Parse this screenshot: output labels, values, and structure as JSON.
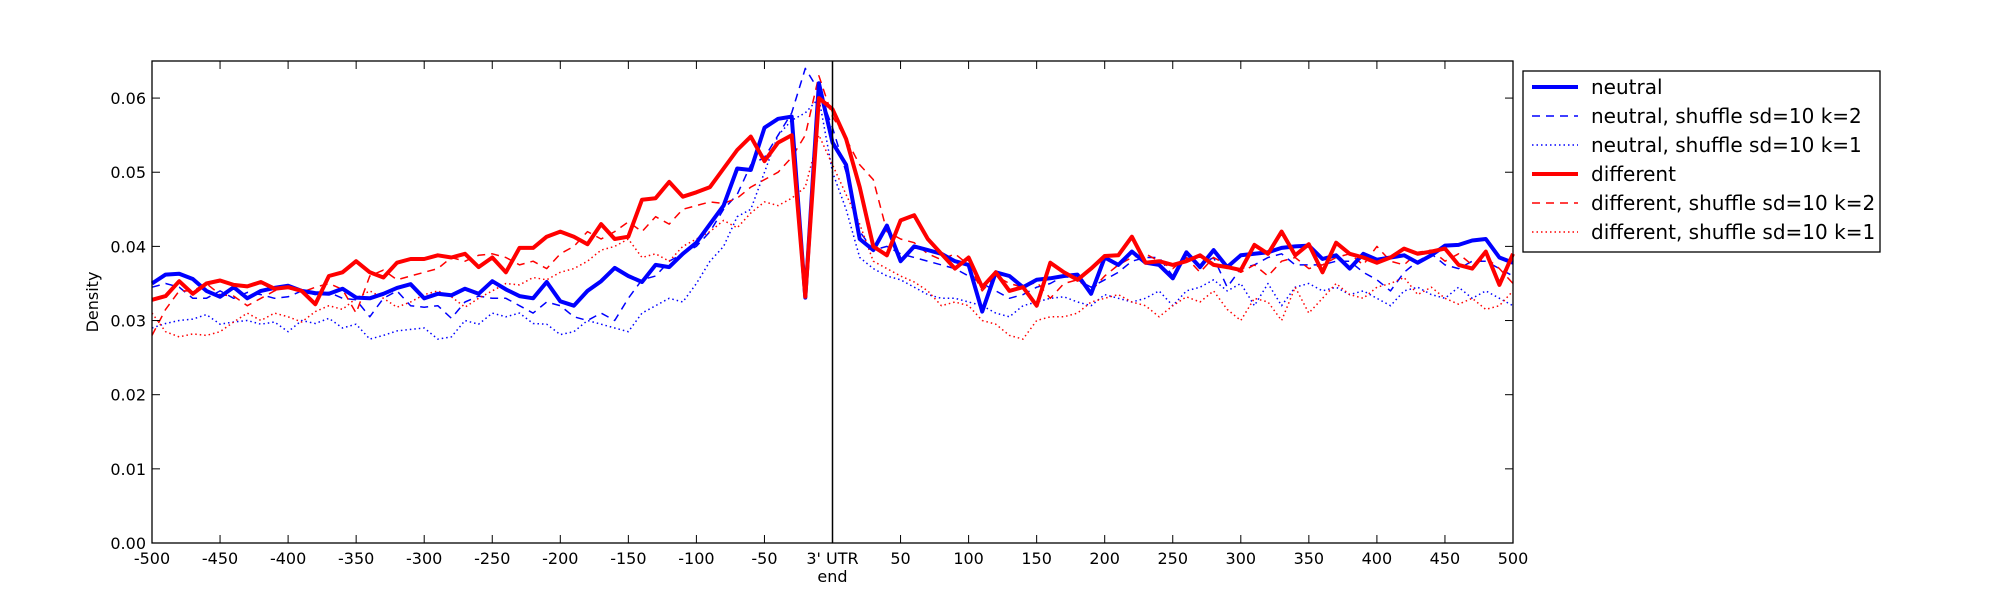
{
  "chart_data": {
    "type": "line",
    "title": "",
    "xlabel": "",
    "ylabel": "Density",
    "xlim": [
      -500,
      500
    ],
    "ylim": [
      0.0,
      0.065
    ],
    "grid": false,
    "legend_position": "outside-top-right",
    "center_marker": {
      "x": 0,
      "label_line1": "3' UTR",
      "label_line2": "end"
    },
    "x_ticks": [
      {
        "value": -500,
        "label": "-500"
      },
      {
        "value": -450,
        "label": "-450"
      },
      {
        "value": -400,
        "label": "-400"
      },
      {
        "value": -350,
        "label": "-350"
      },
      {
        "value": -300,
        "label": "-300"
      },
      {
        "value": -250,
        "label": "-250"
      },
      {
        "value": -200,
        "label": "-200"
      },
      {
        "value": -150,
        "label": "-150"
      },
      {
        "value": -100,
        "label": "-100"
      },
      {
        "value": -50,
        "label": "-50"
      },
      {
        "value": 50,
        "label": "50"
      },
      {
        "value": 100,
        "label": "100"
      },
      {
        "value": 150,
        "label": "150"
      },
      {
        "value": 200,
        "label": "200"
      },
      {
        "value": 250,
        "label": "250"
      },
      {
        "value": 300,
        "label": "300"
      },
      {
        "value": 350,
        "label": "350"
      },
      {
        "value": 400,
        "label": "400"
      },
      {
        "value": 450,
        "label": "450"
      },
      {
        "value": 500,
        "label": "500"
      }
    ],
    "y_ticks": [
      {
        "value": 0.0,
        "label": "0.00"
      },
      {
        "value": 0.01,
        "label": "0.01"
      },
      {
        "value": 0.02,
        "label": "0.02"
      },
      {
        "value": 0.03,
        "label": "0.03"
      },
      {
        "value": 0.04,
        "label": "0.04"
      },
      {
        "value": 0.05,
        "label": "0.05"
      },
      {
        "value": 0.06,
        "label": "0.06"
      }
    ],
    "x": [
      -500,
      -490,
      -480,
      -470,
      -460,
      -450,
      -440,
      -430,
      -420,
      -410,
      -400,
      -390,
      -380,
      -370,
      -360,
      -350,
      -340,
      -330,
      -320,
      -310,
      -300,
      -290,
      -280,
      -270,
      -260,
      -250,
      -240,
      -230,
      -220,
      -210,
      -200,
      -190,
      -180,
      -170,
      -160,
      -150,
      -140,
      -130,
      -120,
      -110,
      -100,
      -90,
      -80,
      -70,
      -60,
      -50,
      -40,
      -30,
      -20,
      -10,
      0,
      10,
      20,
      30,
      40,
      50,
      60,
      70,
      80,
      90,
      100,
      110,
      120,
      130,
      140,
      150,
      160,
      170,
      180,
      190,
      200,
      210,
      220,
      230,
      240,
      250,
      260,
      270,
      280,
      290,
      300,
      310,
      320,
      330,
      340,
      350,
      360,
      370,
      380,
      390,
      400,
      410,
      420,
      430,
      440,
      450,
      460,
      470,
      480,
      490,
      500
    ],
    "series": [
      {
        "name": "neutral",
        "color": "#0000ff",
        "style": "solid-thick",
        "values": [
          0.035,
          0.0362,
          0.0363,
          0.0356,
          0.034,
          0.0332,
          0.0345,
          0.033,
          0.034,
          0.0344,
          0.0347,
          0.034,
          0.0337,
          0.0336,
          0.0343,
          0.0331,
          0.033,
          0.0336,
          0.0344,
          0.0349,
          0.033,
          0.0336,
          0.0334,
          0.0343,
          0.0336,
          0.0353,
          0.0342,
          0.0333,
          0.033,
          0.0352,
          0.0326,
          0.032,
          0.034,
          0.0353,
          0.0371,
          0.036,
          0.0352,
          0.0375,
          0.0372,
          0.039,
          0.0405,
          0.043,
          0.0455,
          0.0505,
          0.0503,
          0.056,
          0.0572,
          0.0575,
          0.0331,
          0.062,
          0.054,
          0.051,
          0.041,
          0.0395,
          0.0428,
          0.038,
          0.04,
          0.0395,
          0.039,
          0.038,
          0.0375,
          0.0312,
          0.0365,
          0.036,
          0.0345,
          0.0355,
          0.0357,
          0.036,
          0.0362,
          0.0336,
          0.0385,
          0.0375,
          0.0393,
          0.0378,
          0.0375,
          0.0357,
          0.0392,
          0.0372,
          0.0395,
          0.0372,
          0.0388,
          0.039,
          0.0392,
          0.0398,
          0.04,
          0.0401,
          0.0383,
          0.0388,
          0.037,
          0.039,
          0.0382,
          0.0385,
          0.0388,
          0.0378,
          0.0388,
          0.0401,
          0.0402,
          0.0408,
          0.041,
          0.0385,
          0.0378
        ]
      },
      {
        "name": "neutral, shuffle sd=10 k=2",
        "color": "#0000ff",
        "style": "dashed",
        "values": [
          0.0345,
          0.035,
          0.0345,
          0.033,
          0.033,
          0.034,
          0.033,
          0.0338,
          0.0335,
          0.033,
          0.0332,
          0.034,
          0.0335,
          0.0338,
          0.033,
          0.0328,
          0.0305,
          0.033,
          0.034,
          0.032,
          0.0318,
          0.032,
          0.0303,
          0.0325,
          0.0333,
          0.033,
          0.033,
          0.032,
          0.031,
          0.0325,
          0.032,
          0.0305,
          0.03,
          0.031,
          0.03,
          0.033,
          0.0355,
          0.036,
          0.038,
          0.039,
          0.04,
          0.042,
          0.045,
          0.047,
          0.051,
          0.052,
          0.055,
          0.058,
          0.064,
          0.061,
          0.056,
          0.05,
          0.042,
          0.0395,
          0.04,
          0.039,
          0.0385,
          0.038,
          0.0375,
          0.037,
          0.036,
          0.035,
          0.034,
          0.033,
          0.0335,
          0.0345,
          0.035,
          0.036,
          0.0355,
          0.0345,
          0.0355,
          0.0365,
          0.038,
          0.0385,
          0.0385,
          0.036,
          0.0385,
          0.0375,
          0.0385,
          0.0345,
          0.037,
          0.0375,
          0.0385,
          0.039,
          0.0375,
          0.0375,
          0.0375,
          0.038,
          0.038,
          0.0365,
          0.0355,
          0.034,
          0.0365,
          0.038,
          0.039,
          0.0375,
          0.037,
          0.038,
          0.038,
          0.037,
          0.036
        ]
      },
      {
        "name": "neutral, shuffle sd=10 k=1",
        "color": "#0000ff",
        "style": "dotted",
        "values": [
          0.029,
          0.0296,
          0.03,
          0.0302,
          0.0308,
          0.0295,
          0.0298,
          0.03,
          0.0295,
          0.0298,
          0.0285,
          0.03,
          0.0296,
          0.0303,
          0.029,
          0.0295,
          0.0275,
          0.028,
          0.0286,
          0.0288,
          0.029,
          0.0275,
          0.0278,
          0.03,
          0.0295,
          0.031,
          0.0305,
          0.031,
          0.0296,
          0.0295,
          0.0281,
          0.0285,
          0.03,
          0.0295,
          0.029,
          0.0285,
          0.031,
          0.032,
          0.033,
          0.0325,
          0.035,
          0.038,
          0.04,
          0.044,
          0.045,
          0.05,
          0.055,
          0.057,
          0.058,
          0.06,
          0.05,
          0.045,
          0.0385,
          0.037,
          0.036,
          0.0355,
          0.0345,
          0.0335,
          0.033,
          0.033,
          0.0325,
          0.032,
          0.031,
          0.0305,
          0.032,
          0.0325,
          0.033,
          0.0332,
          0.0325,
          0.032,
          0.0335,
          0.033,
          0.0325,
          0.033,
          0.034,
          0.032,
          0.034,
          0.0345,
          0.0355,
          0.034,
          0.035,
          0.032,
          0.035,
          0.032,
          0.0345,
          0.035,
          0.034,
          0.0345,
          0.0335,
          0.034,
          0.033,
          0.032,
          0.034,
          0.0345,
          0.0335,
          0.033,
          0.0345,
          0.033,
          0.034,
          0.033,
          0.032
        ]
      },
      {
        "name": "different",
        "color": "#ff0000",
        "style": "solid-thick",
        "values": [
          0.0328,
          0.0333,
          0.0353,
          0.0336,
          0.035,
          0.0354,
          0.0348,
          0.0346,
          0.0352,
          0.0343,
          0.0345,
          0.034,
          0.0322,
          0.036,
          0.0365,
          0.038,
          0.0365,
          0.0358,
          0.0378,
          0.0383,
          0.0383,
          0.0388,
          0.0385,
          0.039,
          0.0372,
          0.0385,
          0.0365,
          0.0398,
          0.0398,
          0.0413,
          0.042,
          0.0413,
          0.0403,
          0.043,
          0.041,
          0.0413,
          0.0463,
          0.0465,
          0.0487,
          0.0467,
          0.0473,
          0.048,
          0.0505,
          0.053,
          0.0548,
          0.0515,
          0.054,
          0.055,
          0.0332,
          0.06,
          0.0585,
          0.0545,
          0.048,
          0.04,
          0.0388,
          0.0435,
          0.0442,
          0.041,
          0.039,
          0.037,
          0.0385,
          0.0345,
          0.0365,
          0.034,
          0.0345,
          0.032,
          0.0378,
          0.0365,
          0.0355,
          0.037,
          0.0387,
          0.0388,
          0.0413,
          0.0378,
          0.038,
          0.0375,
          0.038,
          0.0388,
          0.0375,
          0.0372,
          0.0368,
          0.0402,
          0.039,
          0.042,
          0.0388,
          0.0403,
          0.0365,
          0.0405,
          0.039,
          0.0385,
          0.0378,
          0.0385,
          0.0397,
          0.039,
          0.0393,
          0.0397,
          0.0375,
          0.037,
          0.0393,
          0.0348,
          0.039
        ]
      },
      {
        "name": "different, shuffle sd=10 k=2",
        "color": "#ff0000",
        "style": "dashed",
        "values": [
          0.028,
          0.0315,
          0.034,
          0.034,
          0.035,
          0.0335,
          0.0333,
          0.032,
          0.033,
          0.034,
          0.0348,
          0.0338,
          0.0345,
          0.035,
          0.0342,
          0.031,
          0.036,
          0.0368,
          0.0355,
          0.036,
          0.0365,
          0.037,
          0.0385,
          0.038,
          0.0388,
          0.039,
          0.0385,
          0.0375,
          0.038,
          0.037,
          0.039,
          0.04,
          0.042,
          0.041,
          0.042,
          0.0433,
          0.042,
          0.044,
          0.043,
          0.045,
          0.0455,
          0.046,
          0.0458,
          0.0465,
          0.048,
          0.049,
          0.05,
          0.052,
          0.055,
          0.063,
          0.0575,
          0.0545,
          0.051,
          0.049,
          0.042,
          0.041,
          0.0405,
          0.039,
          0.0382,
          0.039,
          0.0375,
          0.034,
          0.036,
          0.035,
          0.0345,
          0.0352,
          0.033,
          0.035,
          0.0355,
          0.034,
          0.036,
          0.0375,
          0.0385,
          0.039,
          0.038,
          0.037,
          0.0385,
          0.0365,
          0.0385,
          0.0375,
          0.0365,
          0.0375,
          0.036,
          0.038,
          0.0385,
          0.037,
          0.0375,
          0.0385,
          0.039,
          0.0375,
          0.04,
          0.038,
          0.0375,
          0.0392,
          0.0395,
          0.038,
          0.039,
          0.0375,
          0.0385,
          0.037,
          0.035
        ]
      },
      {
        "name": "different, shuffle sd=10 k=1",
        "color": "#ff0000",
        "style": "dotted",
        "values": [
          0.031,
          0.0285,
          0.0278,
          0.0282,
          0.028,
          0.0285,
          0.0298,
          0.031,
          0.03,
          0.031,
          0.0305,
          0.0298,
          0.0312,
          0.032,
          0.0315,
          0.033,
          0.034,
          0.033,
          0.0318,
          0.0325,
          0.0335,
          0.034,
          0.0332,
          0.0318,
          0.033,
          0.034,
          0.035,
          0.0348,
          0.0358,
          0.0355,
          0.0365,
          0.037,
          0.038,
          0.0395,
          0.04,
          0.041,
          0.0385,
          0.039,
          0.038,
          0.04,
          0.041,
          0.042,
          0.0435,
          0.0425,
          0.0445,
          0.046,
          0.0455,
          0.0465,
          0.048,
          0.055,
          0.051,
          0.047,
          0.043,
          0.038,
          0.037,
          0.036,
          0.0352,
          0.034,
          0.032,
          0.0325,
          0.032,
          0.03,
          0.0295,
          0.028,
          0.0275,
          0.03,
          0.0305,
          0.0305,
          0.031,
          0.0325,
          0.033,
          0.0335,
          0.0325,
          0.032,
          0.0305,
          0.032,
          0.0332,
          0.0325,
          0.034,
          0.0315,
          0.03,
          0.033,
          0.0325,
          0.03,
          0.0345,
          0.031,
          0.033,
          0.035,
          0.0335,
          0.033,
          0.0345,
          0.035,
          0.0358,
          0.0335,
          0.0345,
          0.033,
          0.0322,
          0.033,
          0.0315,
          0.032,
          0.034
        ]
      }
    ]
  }
}
